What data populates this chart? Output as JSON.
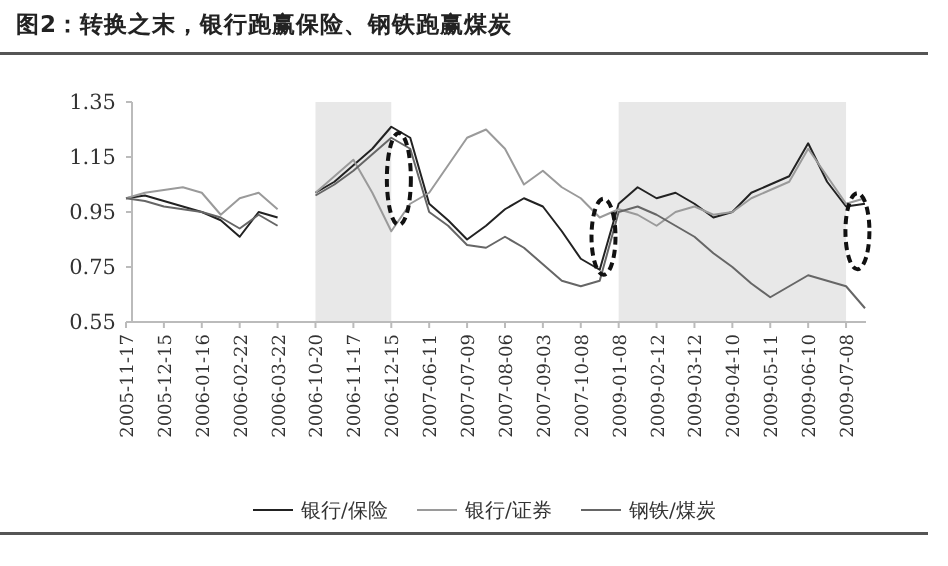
{
  "chart_data": {
    "type": "line",
    "title": "图2：转换之末，银行跑赢保险、钢铁跑赢煤炭",
    "categories": [
      "2005-11-17",
      null,
      "2005-12-15",
      null,
      "2006-01-16",
      null,
      "2006-02-22",
      null,
      "2006-03-22",
      null,
      "2006-10-20",
      null,
      "2006-11-17",
      null,
      "2006-12-15",
      null,
      "2007-06-11",
      null,
      "2007-07-09",
      null,
      "2007-08-06",
      null,
      "2007-09-03",
      null,
      "2007-10-08",
      null,
      "2009-01-08",
      null,
      "2009-02-12",
      null,
      "2009-03-12",
      null,
      "2009-04-10",
      null,
      "2009-05-11",
      null,
      "2009-06-10",
      null,
      "2009-07-08",
      null
    ],
    "series": [
      {
        "name": "银行/保险",
        "color": "#222222",
        "values": [
          1.0,
          1.01,
          0.99,
          0.97,
          0.95,
          0.92,
          0.86,
          0.95,
          0.93,
          null,
          1.02,
          1.06,
          1.12,
          1.18,
          1.26,
          1.22,
          0.98,
          0.92,
          0.85,
          0.9,
          0.96,
          1.0,
          0.97,
          0.88,
          0.78,
          0.74,
          0.98,
          1.04,
          1.0,
          1.02,
          0.98,
          0.93,
          0.95,
          1.02,
          1.05,
          1.08,
          1.2,
          1.06,
          0.97,
          0.98
        ]
      },
      {
        "name": "银行/证券",
        "color": "#9a9a9a",
        "values": [
          1.0,
          1.02,
          1.03,
          1.04,
          1.02,
          0.94,
          1.0,
          1.02,
          0.96,
          null,
          1.02,
          1.08,
          1.14,
          1.02,
          0.88,
          0.98,
          1.02,
          1.12,
          1.22,
          1.25,
          1.18,
          1.05,
          1.1,
          1.04,
          1.0,
          0.93,
          0.96,
          0.94,
          0.9,
          0.95,
          0.97,
          0.94,
          0.95,
          1.0,
          1.03,
          1.06,
          1.18,
          1.08,
          0.98,
          1.0
        ]
      },
      {
        "name": "钢铁/煤炭",
        "color": "#666666",
        "values": [
          1.0,
          0.99,
          0.97,
          0.96,
          0.95,
          0.93,
          0.89,
          0.94,
          0.9,
          null,
          1.01,
          1.05,
          1.1,
          1.16,
          1.22,
          1.18,
          0.95,
          0.9,
          0.83,
          0.82,
          0.86,
          0.82,
          0.76,
          0.7,
          0.68,
          0.7,
          0.95,
          0.97,
          0.94,
          0.9,
          0.86,
          0.8,
          0.75,
          0.69,
          0.64,
          0.68,
          0.72,
          0.7,
          0.68,
          0.6
        ]
      }
    ],
    "ylim": [
      0.55,
      1.35
    ],
    "yticks": [
      0.55,
      0.75,
      0.95,
      1.15,
      1.35
    ],
    "bands": [
      {
        "axis": "x",
        "from": "2006-10-20",
        "to": "2006-12-15",
        "color": "#e8e8e8"
      },
      {
        "axis": "x",
        "from": "2009-01-08",
        "to": "2009-07-08",
        "color": "#e8e8e8"
      }
    ],
    "legend": "bottom",
    "grid": false,
    "line_style": "solid",
    "marker": "none"
  }
}
